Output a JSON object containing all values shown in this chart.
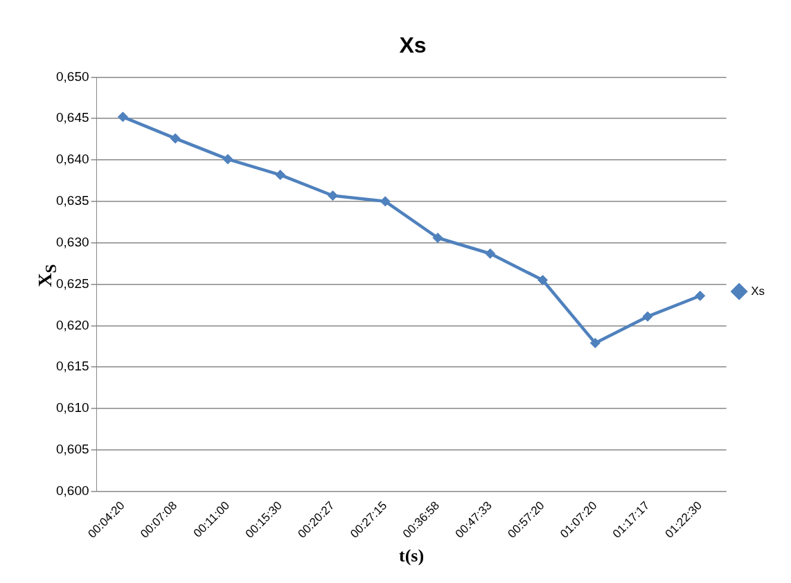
{
  "chart_data": {
    "type": "line",
    "title": "Xs",
    "xlabel": "t(s)",
    "ylabel": "X$_{S}$",
    "categories": [
      "00:04:20",
      "00:07:08",
      "00:11:00",
      "00:15:30",
      "00:20:27",
      "00:27:15",
      "00:36:58",
      "00:47:33",
      "00:57:20",
      "01:07:20",
      "01:17:17",
      "01:22:30"
    ],
    "series": [
      {
        "name": "Xs",
        "color": "#4f81bd",
        "values": [
          0.6452,
          0.6426,
          0.6401,
          0.6382,
          0.6357,
          0.635,
          0.6306,
          0.6287,
          0.6255,
          0.6179,
          0.6211,
          0.6236
        ]
      }
    ],
    "ylim": [
      0.6,
      0.65
    ],
    "yticks": [
      {
        "value": 0.6,
        "label": "0,600"
      },
      {
        "value": 0.605,
        "label": "0,605"
      },
      {
        "value": 0.61,
        "label": "0,610"
      },
      {
        "value": 0.615,
        "label": "0,615"
      },
      {
        "value": 0.62,
        "label": "0,620"
      },
      {
        "value": 0.625,
        "label": "0,625"
      },
      {
        "value": 0.63,
        "label": "0,630"
      },
      {
        "value": 0.635,
        "label": "0,635"
      },
      {
        "value": 0.64,
        "label": "0,640"
      },
      {
        "value": 0.645,
        "label": "0,645"
      },
      {
        "value": 0.65,
        "label": "0,650"
      }
    ],
    "grid": "y",
    "legend": "right",
    "marker": "diamond",
    "line_style": "solid"
  }
}
